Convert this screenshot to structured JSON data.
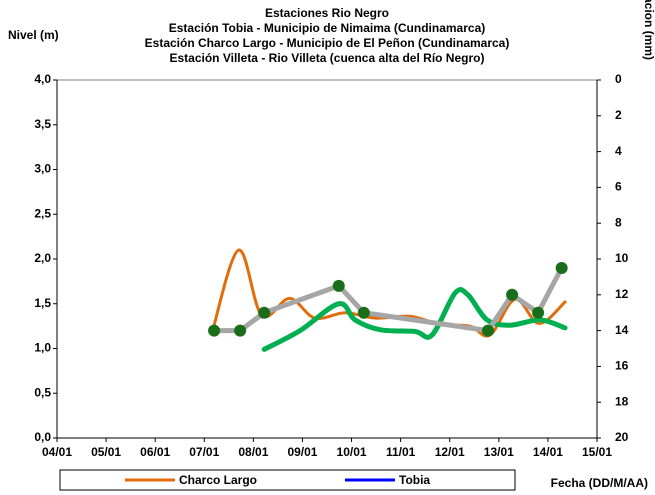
{
  "chart_data": {
    "type": "line",
    "title": [
      "Estaciones Rio Negro",
      "Estación Tobia  - Municipio de Nimaima (Cundinamarca)",
      "Estación Charco Largo - Municipio de El Peñon (Cundinamarca)",
      "Estación Villeta -  Rio Villeta (cuenca alta del Río Negro)"
    ],
    "ylabel": "Nivel (m)",
    "y2label": "Precipitacion (mm)",
    "xlabel": "Fecha (DD/M/AA)",
    "xlim": [
      4,
      15
    ],
    "xticks": [
      {
        "value": 4,
        "label": "04/01"
      },
      {
        "value": 5,
        "label": "05/01"
      },
      {
        "value": 6,
        "label": "06/01"
      },
      {
        "value": 7,
        "label": "07/01"
      },
      {
        "value": 8,
        "label": "08/01"
      },
      {
        "value": 9,
        "label": "09/01"
      },
      {
        "value": 10,
        "label": "10/01"
      },
      {
        "value": 11,
        "label": "11/01"
      },
      {
        "value": 12,
        "label": "12/01"
      },
      {
        "value": 13,
        "label": "13/01"
      },
      {
        "value": 14,
        "label": "14/01"
      },
      {
        "value": 15,
        "label": "15/01"
      }
    ],
    "ylim": [
      0,
      4
    ],
    "yticks": [
      {
        "value": 0,
        "label": "0,0"
      },
      {
        "value": 0.5,
        "label": "0,5"
      },
      {
        "value": 1,
        "label": "1,0"
      },
      {
        "value": 1.5,
        "label": "1,5"
      },
      {
        "value": 2,
        "label": "2,0"
      },
      {
        "value": 2.5,
        "label": "2,5"
      },
      {
        "value": 3,
        "label": "3,0"
      },
      {
        "value": 3.5,
        "label": "3,5"
      },
      {
        "value": 4,
        "label": "4,0"
      }
    ],
    "y2lim": [
      0,
      20
    ],
    "y2ticks": [
      0,
      2,
      4,
      6,
      8,
      10,
      12,
      14,
      16,
      18,
      20
    ],
    "y2_inverted": true,
    "grid": false,
    "legend": "bottom",
    "series": [
      {
        "name": "Charco Largo",
        "color": "#e36c0a",
        "width": 3,
        "smooth": true,
        "x": [
          7.16,
          7.7,
          8.17,
          8.74,
          9.25,
          9.87,
          10.48,
          11.19,
          11.8,
          12.41,
          12.82,
          13.33,
          13.82,
          14.35
        ],
        "values": [
          1.18,
          2.1,
          1.37,
          1.56,
          1.34,
          1.4,
          1.34,
          1.36,
          1.27,
          1.25,
          1.15,
          1.55,
          1.28,
          1.52
        ]
      },
      {
        "name": "Tobia",
        "color": "#0000ff",
        "width": 3,
        "smooth": true,
        "x": [],
        "values": []
      },
      {
        "color": "#00b050",
        "width": 5,
        "smooth": true,
        "x": [
          8.22,
          8.95,
          9.74,
          10.07,
          10.58,
          11.29,
          11.64,
          12.11,
          12.37,
          12.76,
          13.23,
          13.84,
          14.35
        ],
        "values": [
          0.99,
          1.2,
          1.5,
          1.32,
          1.21,
          1.19,
          1.15,
          1.62,
          1.6,
          1.32,
          1.26,
          1.32,
          1.23
        ]
      },
      {
        "color": "#a6a6a6",
        "width": 5,
        "smooth": false,
        "marker_color": "#1a6e1a",
        "x": [
          7.2,
          7.73,
          8.22,
          9.74,
          10.25,
          12.78,
          13.27,
          13.8,
          14.28
        ],
        "values": [
          1.2,
          1.2,
          1.4,
          1.7,
          1.4,
          1.2,
          1.6,
          1.4,
          1.9
        ]
      }
    ]
  }
}
